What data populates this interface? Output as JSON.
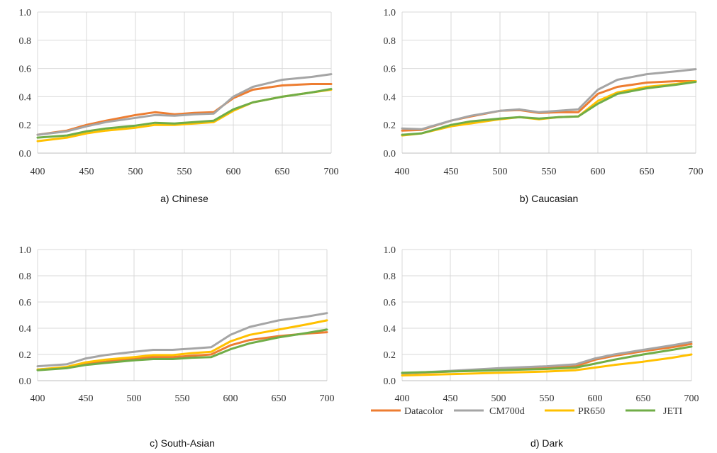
{
  "colors": {
    "Datacolor": "#ED7D31",
    "CM700d": "#A5A5A5",
    "PR650": "#FFC000",
    "JETI": "#70AD47"
  },
  "legend": {
    "position": "bottom-right",
    "items": [
      "Datacolor",
      "CM700d",
      "PR650",
      "JETI"
    ]
  },
  "chart_data": [
    {
      "type": "line",
      "caption": "a) Chinese",
      "xlim": [
        400,
        700
      ],
      "ylim": [
        0,
        1
      ],
      "x_ticks": [
        "400",
        "450",
        "500",
        "550",
        "600",
        "650",
        "700"
      ],
      "y_ticks": [
        "0.0",
        "0.2",
        "0.4",
        "0.6",
        "0.8",
        "1.0"
      ],
      "grid": true,
      "x": [
        400,
        430,
        450,
        470,
        500,
        520,
        540,
        560,
        580,
        600,
        620,
        650,
        680,
        700
      ],
      "series": [
        {
          "name": "Datacolor",
          "values": [
            0.13,
            0.16,
            0.2,
            0.23,
            0.27,
            0.29,
            0.275,
            0.285,
            0.29,
            0.39,
            0.45,
            0.48,
            0.49,
            0.49
          ]
        },
        {
          "name": "CM700d",
          "values": [
            0.13,
            0.155,
            0.19,
            0.22,
            0.25,
            0.27,
            0.265,
            0.275,
            0.28,
            0.4,
            0.47,
            0.52,
            0.54,
            0.56
          ]
        },
        {
          "name": "PR650",
          "values": [
            0.085,
            0.11,
            0.14,
            0.16,
            0.18,
            0.2,
            0.2,
            0.21,
            0.22,
            0.3,
            0.36,
            0.4,
            0.43,
            0.45
          ]
        },
        {
          "name": "JETI",
          "values": [
            0.11,
            0.125,
            0.155,
            0.175,
            0.195,
            0.215,
            0.21,
            0.22,
            0.23,
            0.31,
            0.36,
            0.4,
            0.43,
            0.455
          ]
        }
      ]
    },
    {
      "type": "line",
      "caption": "b) Caucasian",
      "xlim": [
        400,
        700
      ],
      "ylim": [
        0,
        1
      ],
      "x_ticks": [
        "400",
        "450",
        "500",
        "550",
        "600",
        "650",
        "700"
      ],
      "y_ticks": [
        "0.0",
        "0.2",
        "0.4",
        "0.6",
        "0.8",
        "1.0"
      ],
      "grid": true,
      "x": [
        400,
        420,
        450,
        470,
        500,
        520,
        540,
        560,
        580,
        600,
        620,
        650,
        680,
        700
      ],
      "series": [
        {
          "name": "Datacolor",
          "values": [
            0.16,
            0.165,
            0.23,
            0.26,
            0.3,
            0.305,
            0.285,
            0.29,
            0.29,
            0.42,
            0.47,
            0.5,
            0.51,
            0.51
          ]
        },
        {
          "name": "CM700d",
          "values": [
            0.175,
            0.17,
            0.23,
            0.265,
            0.3,
            0.31,
            0.29,
            0.3,
            0.31,
            0.45,
            0.52,
            0.56,
            0.58,
            0.595
          ]
        },
        {
          "name": "PR650",
          "values": [
            0.125,
            0.14,
            0.19,
            0.21,
            0.24,
            0.255,
            0.24,
            0.255,
            0.26,
            0.37,
            0.43,
            0.47,
            0.49,
            0.51
          ]
        },
        {
          "name": "JETI",
          "values": [
            0.13,
            0.14,
            0.2,
            0.225,
            0.245,
            0.255,
            0.245,
            0.255,
            0.26,
            0.35,
            0.42,
            0.46,
            0.485,
            0.505
          ]
        }
      ]
    },
    {
      "type": "line",
      "caption": "c) South-Asian",
      "xlim": [
        400,
        700
      ],
      "ylim": [
        0,
        1
      ],
      "x_ticks": [
        "400",
        "450",
        "500",
        "550",
        "600",
        "650",
        "700"
      ],
      "y_ticks": [
        "0.0",
        "0.2",
        "0.4",
        "0.6",
        "0.8",
        "1.0"
      ],
      "grid": true,
      "x": [
        400,
        430,
        450,
        470,
        500,
        520,
        540,
        560,
        580,
        600,
        620,
        650,
        680,
        700
      ],
      "series": [
        {
          "name": "Datacolor",
          "values": [
            0.085,
            0.1,
            0.13,
            0.145,
            0.17,
            0.18,
            0.18,
            0.19,
            0.2,
            0.27,
            0.31,
            0.34,
            0.36,
            0.37
          ]
        },
        {
          "name": "CM700d",
          "values": [
            0.11,
            0.125,
            0.17,
            0.195,
            0.22,
            0.235,
            0.235,
            0.245,
            0.255,
            0.35,
            0.41,
            0.46,
            0.49,
            0.515
          ]
        },
        {
          "name": "PR650",
          "values": [
            0.085,
            0.105,
            0.14,
            0.16,
            0.18,
            0.195,
            0.195,
            0.21,
            0.22,
            0.3,
            0.35,
            0.39,
            0.43,
            0.46
          ]
        },
        {
          "name": "JETI",
          "values": [
            0.08,
            0.095,
            0.12,
            0.135,
            0.155,
            0.165,
            0.165,
            0.175,
            0.18,
            0.24,
            0.285,
            0.33,
            0.365,
            0.39
          ]
        }
      ]
    },
    {
      "type": "line",
      "caption": "d) Dark",
      "xlim": [
        400,
        700
      ],
      "ylim": [
        0,
        1
      ],
      "x_ticks": [
        "400",
        "450",
        "500",
        "550",
        "600",
        "650",
        "700"
      ],
      "y_ticks": [
        "0.0",
        "0.2",
        "0.4",
        "0.6",
        "0.8",
        "1.0"
      ],
      "grid": true,
      "x": [
        400,
        450,
        500,
        550,
        580,
        600,
        620,
        650,
        680,
        700
      ],
      "series": [
        {
          "name": "Datacolor",
          "values": [
            0.055,
            0.07,
            0.085,
            0.095,
            0.11,
            0.16,
            0.19,
            0.225,
            0.255,
            0.28
          ]
        },
        {
          "name": "CM700d",
          "values": [
            0.055,
            0.075,
            0.095,
            0.11,
            0.125,
            0.17,
            0.2,
            0.235,
            0.27,
            0.295
          ]
        },
        {
          "name": "PR650",
          "values": [
            0.04,
            0.05,
            0.06,
            0.07,
            0.08,
            0.1,
            0.12,
            0.145,
            0.175,
            0.2
          ]
        },
        {
          "name": "JETI",
          "values": [
            0.06,
            0.07,
            0.08,
            0.09,
            0.1,
            0.13,
            0.16,
            0.2,
            0.235,
            0.26
          ]
        }
      ]
    }
  ]
}
